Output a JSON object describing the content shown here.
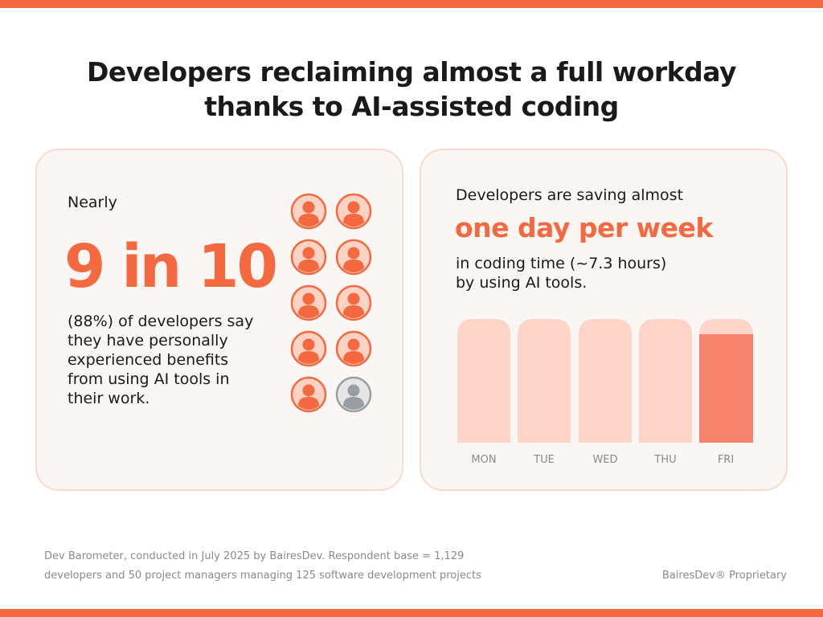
{
  "header": {
    "title_lines": [
      "Developers reclaiming almost a full workday",
      "thanks to AI-assisted coding"
    ]
  },
  "left_card": {
    "lead": "Nearly",
    "stat": "9 in 10",
    "body_lines": [
      "(88%) of developers say",
      "they have personally",
      "experienced benefits",
      "from using AI tools in",
      "their work."
    ]
  },
  "right_card": {
    "intro": "Developers are saving almost",
    "highlight": "one day per week",
    "body_lines": [
      "in coding time (~7.3 hours)",
      "by using AI tools."
    ],
    "days": [
      "MON",
      "TUE",
      "WED",
      "THU",
      "FRI"
    ]
  },
  "footer": {
    "source_lines": [
      "Dev Barometer, conducted in July 2025 by BairesDev. Respondent base = 1,129",
      "developers and 50 project managers managing 125 software development projects"
    ],
    "brand": "BairesDev® Proprietary"
  }
}
